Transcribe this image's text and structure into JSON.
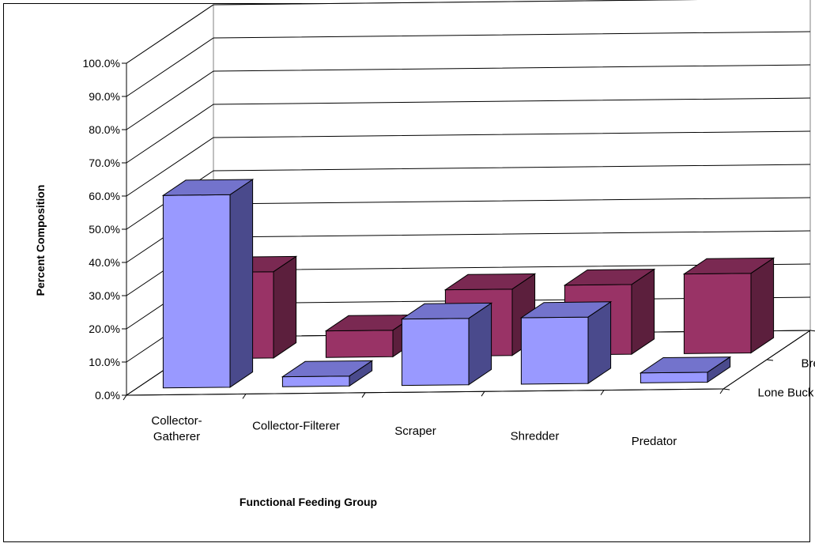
{
  "chart_data": {
    "type": "bar",
    "subtype": "3d-clustered-depth",
    "title": "",
    "xlabel": "Functional Feeding Group",
    "ylabel": "Percent Composition",
    "categories": [
      "Collector-Gatherer",
      "Collector-Filterer",
      "Scraper",
      "Shredder",
      "Predator"
    ],
    "category_lines": [
      [
        "Collector-",
        "Gatherer"
      ],
      [
        "Collector-Filterer"
      ],
      [
        "Scraper"
      ],
      [
        "Shredder"
      ],
      [
        "Predator"
      ]
    ],
    "depth_labels": [
      "Breeze",
      "Lone Buck"
    ],
    "series": [
      {
        "name": "Lone Buck",
        "values": [
          58.0,
          3.0,
          20.0,
          20.0,
          3.0
        ]
      },
      {
        "name": "Breeze",
        "values": [
          26.0,
          8.0,
          20.0,
          21.0,
          24.0
        ]
      }
    ],
    "ylim": [
      0,
      100
    ],
    "ytick_labels": [
      "0.0%",
      "10.0%",
      "20.0%",
      "30.0%",
      "40.0%",
      "50.0%",
      "60.0%",
      "70.0%",
      "80.0%",
      "90.0%",
      "100.0%"
    ],
    "grid": true,
    "legend": "none",
    "colors": {
      "Lone Buck": {
        "front": "#9999ff",
        "side": "#4a4a8c",
        "top": "#7373cc"
      },
      "Breeze": {
        "front": "#993366",
        "side": "#5c1f3d",
        "top": "#7a2952"
      }
    }
  }
}
